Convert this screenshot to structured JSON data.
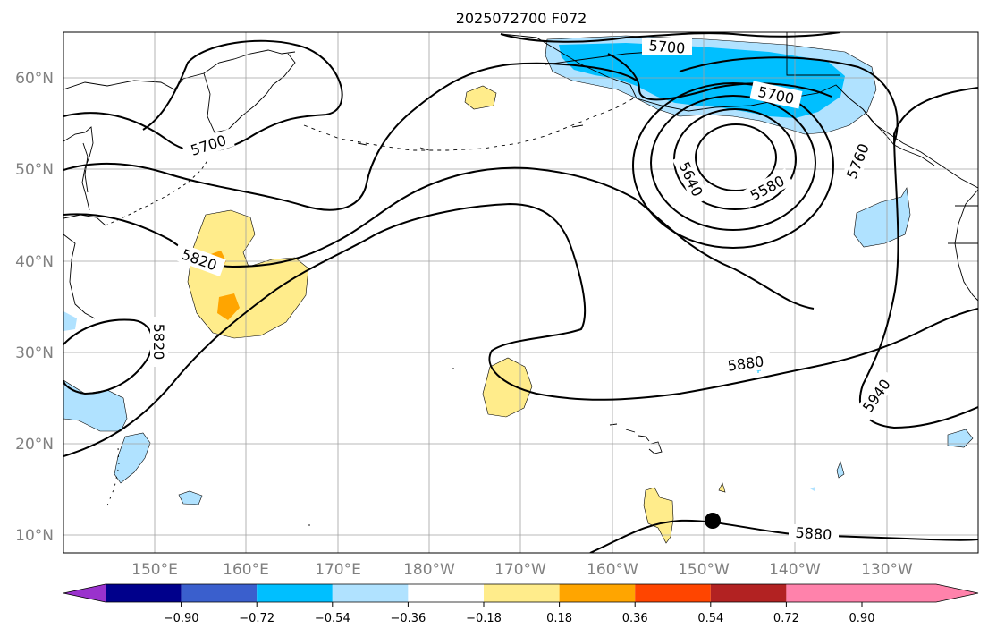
{
  "title": "2025072700 F072",
  "lat_labels": [
    "60°N",
    "50°N",
    "40°N",
    "30°N",
    "20°N",
    "10°N"
  ],
  "lon_labels": [
    "150°E",
    "160°E",
    "170°E",
    "180°W",
    "170°W",
    "160°W",
    "150°W",
    "140°W",
    "130°W"
  ],
  "contour_labels": [
    "5700",
    "5700",
    "5700",
    "5640",
    "5580",
    "5760",
    "5820",
    "5820",
    "5880",
    "5880",
    "5940"
  ],
  "colorbar": {
    "tick_labels": [
      "−0.90",
      "−0.72",
      "−0.54",
      "−0.36",
      "−0.18",
      "0.18",
      "0.36",
      "0.54",
      "0.72",
      "0.90"
    ],
    "colors": [
      "#9a32cd",
      "#00008b",
      "#3a5fcd",
      "#00bfff",
      "#b0e2ff",
      "#ffffff",
      "#ffec8b",
      "#ffa500",
      "#ff4500",
      "#b22222",
      "#ff82ab"
    ]
  }
}
